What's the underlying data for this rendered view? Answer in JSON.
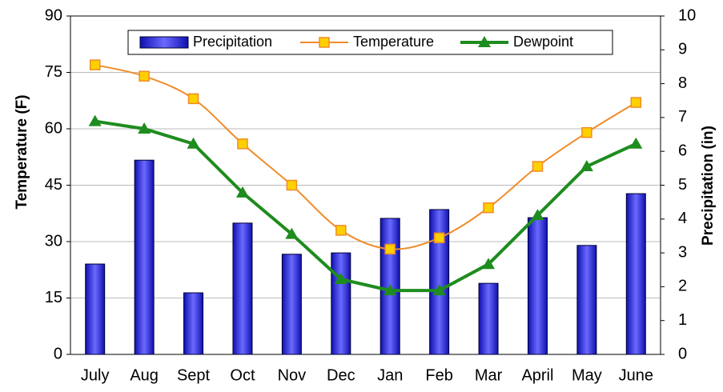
{
  "chart_data": {
    "type": "combo",
    "categories": [
      "July",
      "Aug",
      "Sept",
      "Oct",
      "Nov",
      "Dec",
      "Jan",
      "Feb",
      "Mar",
      "April",
      "May",
      "June"
    ],
    "y_label": "Temperature (F)",
    "y2_label": "Precipitation (in)",
    "ylim": [
      0,
      90
    ],
    "yticks": [
      0,
      15,
      30,
      45,
      60,
      75,
      90
    ],
    "y2lim": [
      0,
      10
    ],
    "y2ticks": [
      0,
      1,
      2,
      3,
      4,
      5,
      6,
      7,
      8,
      9,
      10
    ],
    "grid": true,
    "legend": "top",
    "series": [
      {
        "name": "Precipitation",
        "type": "bar",
        "axis": "y2",
        "color": "#2a2ae0",
        "values": [
          2.67,
          5.74,
          1.82,
          3.88,
          2.96,
          3.0,
          4.02,
          4.28,
          2.1,
          4.04,
          3.22,
          4.75
        ]
      },
      {
        "name": "Temperature",
        "type": "line",
        "smooth": true,
        "marker": "square",
        "color": "#f08c28",
        "values": [
          77,
          74,
          68,
          56,
          45,
          33,
          28,
          31,
          39,
          50,
          59,
          67
        ]
      },
      {
        "name": "Dewpoint",
        "type": "line",
        "smooth": false,
        "marker": "triangle",
        "color": "#1e8c1e",
        "values": [
          62,
          60,
          56,
          43,
          32,
          20,
          17,
          17,
          24,
          37,
          50,
          56
        ]
      }
    ]
  }
}
